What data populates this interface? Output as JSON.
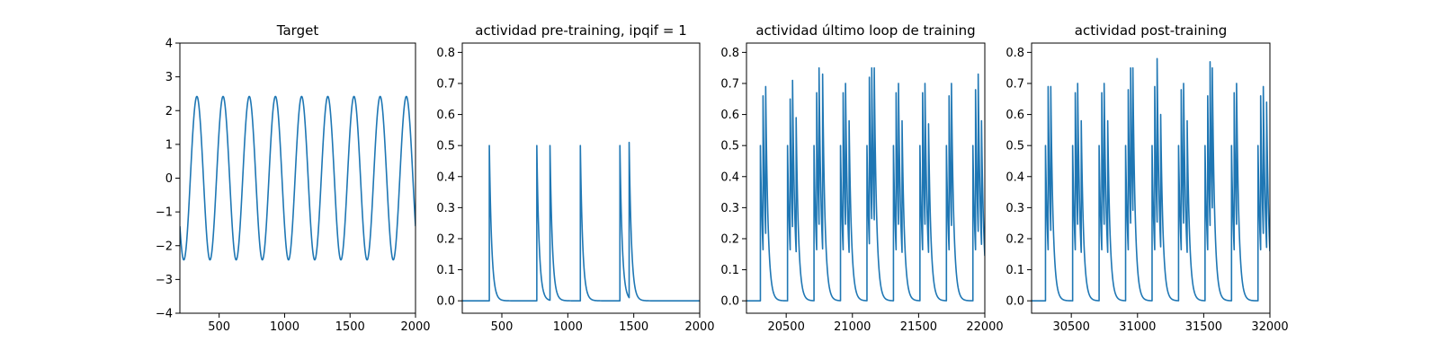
{
  "chart_data": [
    {
      "type": "line",
      "title": "Target",
      "xlabel": "",
      "ylabel": "",
      "xlim": [
        200,
        2000
      ],
      "ylim": [
        -4,
        4
      ],
      "xticks": [
        500,
        1000,
        1500,
        2000
      ],
      "yticks": [
        -4,
        -3,
        -2,
        -1,
        0,
        1,
        2,
        3,
        4
      ],
      "grid": false,
      "signal": {
        "kind": "sine",
        "amplitude": 2.42,
        "period": 200,
        "peak_at": 330,
        "x_start": 200,
        "x_end": 2000
      }
    },
    {
      "type": "line",
      "title": "actividad pre-training, ipqif = 1",
      "xlabel": "",
      "ylabel": "",
      "xlim": [
        200,
        2000
      ],
      "ylim": [
        -0.04,
        0.83
      ],
      "xticks": [
        500,
        1000,
        1500,
        2000
      ],
      "yticks": [
        0.0,
        0.1,
        0.2,
        0.3,
        0.4,
        0.5,
        0.6,
        0.7,
        0.8
      ],
      "grid": false,
      "signal": {
        "kind": "spikes",
        "x_start": 200,
        "x_end": 2000,
        "decay": 18,
        "spikes": [
          {
            "x": 405,
            "h": 0.5
          },
          {
            "x": 765,
            "h": 0.5
          },
          {
            "x": 865,
            "h": 0.5
          },
          {
            "x": 1095,
            "h": 0.5
          },
          {
            "x": 1395,
            "h": 0.5
          },
          {
            "x": 1465,
            "h": 0.51
          }
        ]
      }
    },
    {
      "type": "line",
      "title": "actividad último loop de training",
      "xlabel": "",
      "ylabel": "",
      "xlim": [
        20200,
        22000
      ],
      "ylim": [
        -0.04,
        0.83
      ],
      "xticks": [
        20500,
        21000,
        21500,
        22000
      ],
      "yticks": [
        0.0,
        0.1,
        0.2,
        0.3,
        0.4,
        0.5,
        0.6,
        0.7,
        0.8
      ],
      "grid": false,
      "signal": {
        "kind": "spikes",
        "x_start": 20200,
        "x_end": 22000,
        "decay": 18,
        "spikes": [
          {
            "x": 20305,
            "h": 0.5
          },
          {
            "x": 20325,
            "h": 0.66
          },
          {
            "x": 20345,
            "h": 0.69
          },
          {
            "x": 20510,
            "h": 0.5
          },
          {
            "x": 20530,
            "h": 0.65
          },
          {
            "x": 20548,
            "h": 0.71
          },
          {
            "x": 20575,
            "h": 0.59
          },
          {
            "x": 20710,
            "h": 0.5
          },
          {
            "x": 20730,
            "h": 0.67
          },
          {
            "x": 20748,
            "h": 0.75
          },
          {
            "x": 20775,
            "h": 0.73
          },
          {
            "x": 20910,
            "h": 0.5
          },
          {
            "x": 20930,
            "h": 0.67
          },
          {
            "x": 20948,
            "h": 0.7
          },
          {
            "x": 20975,
            "h": 0.58
          },
          {
            "x": 21110,
            "h": 0.5
          },
          {
            "x": 21128,
            "h": 0.72
          },
          {
            "x": 21146,
            "h": 0.75
          },
          {
            "x": 21165,
            "h": 0.75
          },
          {
            "x": 21310,
            "h": 0.5
          },
          {
            "x": 21330,
            "h": 0.67
          },
          {
            "x": 21348,
            "h": 0.7
          },
          {
            "x": 21375,
            "h": 0.58
          },
          {
            "x": 21510,
            "h": 0.5
          },
          {
            "x": 21530,
            "h": 0.67
          },
          {
            "x": 21548,
            "h": 0.7
          },
          {
            "x": 21575,
            "h": 0.57
          },
          {
            "x": 21710,
            "h": 0.5
          },
          {
            "x": 21730,
            "h": 0.66
          },
          {
            "x": 21748,
            "h": 0.7
          },
          {
            "x": 21910,
            "h": 0.5
          },
          {
            "x": 21930,
            "h": 0.68
          },
          {
            "x": 21950,
            "h": 0.73
          },
          {
            "x": 21975,
            "h": 0.58
          }
        ]
      }
    },
    {
      "type": "line",
      "title": "actividad post-training",
      "xlabel": "",
      "ylabel": "",
      "xlim": [
        30200,
        32000
      ],
      "ylim": [
        -0.04,
        0.83
      ],
      "xticks": [
        30500,
        31000,
        31500,
        32000
      ],
      "yticks": [
        0.0,
        0.1,
        0.2,
        0.3,
        0.4,
        0.5,
        0.6,
        0.7,
        0.8
      ],
      "grid": false,
      "signal": {
        "kind": "spikes",
        "x_start": 30200,
        "x_end": 32000,
        "decay": 18,
        "spikes": [
          {
            "x": 30305,
            "h": 0.5
          },
          {
            "x": 30325,
            "h": 0.69
          },
          {
            "x": 30345,
            "h": 0.69
          },
          {
            "x": 30510,
            "h": 0.5
          },
          {
            "x": 30530,
            "h": 0.67
          },
          {
            "x": 30548,
            "h": 0.7
          },
          {
            "x": 30575,
            "h": 0.58
          },
          {
            "x": 30710,
            "h": 0.5
          },
          {
            "x": 30730,
            "h": 0.67
          },
          {
            "x": 30748,
            "h": 0.7
          },
          {
            "x": 30775,
            "h": 0.58
          },
          {
            "x": 30910,
            "h": 0.5
          },
          {
            "x": 30930,
            "h": 0.68
          },
          {
            "x": 30948,
            "h": 0.75
          },
          {
            "x": 30965,
            "h": 0.75
          },
          {
            "x": 31110,
            "h": 0.5
          },
          {
            "x": 31130,
            "h": 0.69
          },
          {
            "x": 31148,
            "h": 0.78
          },
          {
            "x": 31175,
            "h": 0.6
          },
          {
            "x": 31310,
            "h": 0.5
          },
          {
            "x": 31330,
            "h": 0.68
          },
          {
            "x": 31348,
            "h": 0.7
          },
          {
            "x": 31375,
            "h": 0.58
          },
          {
            "x": 31510,
            "h": 0.5
          },
          {
            "x": 31530,
            "h": 0.66
          },
          {
            "x": 31548,
            "h": 0.77
          },
          {
            "x": 31565,
            "h": 0.75
          },
          {
            "x": 31710,
            "h": 0.5
          },
          {
            "x": 31730,
            "h": 0.67
          },
          {
            "x": 31748,
            "h": 0.7
          },
          {
            "x": 31910,
            "h": 0.5
          },
          {
            "x": 31930,
            "h": 0.66
          },
          {
            "x": 31950,
            "h": 0.69
          },
          {
            "x": 31975,
            "h": 0.64
          }
        ]
      }
    }
  ]
}
